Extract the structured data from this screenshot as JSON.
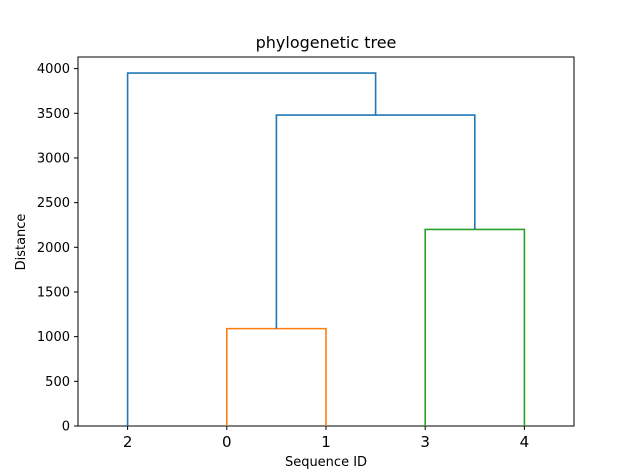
{
  "chart_data": {
    "type": "dendrogram",
    "title": "phylogenetic tree",
    "xlabel": "Sequence ID",
    "ylabel": "Distance",
    "leaf_order": [
      "2",
      "0",
      "1",
      "3",
      "4"
    ],
    "ylim": [
      0,
      4130
    ],
    "yticks": [
      0,
      500,
      1000,
      1500,
      2000,
      2500,
      3000,
      3500,
      4000
    ],
    "grid": false,
    "links": [
      {
        "name": "link-0-1",
        "left": "0",
        "right": "1",
        "height": 1090,
        "color": "#ff7f0e"
      },
      {
        "name": "link-3-4",
        "left": "3",
        "right": "4",
        "height": 2200,
        "color": "#2ca02c"
      },
      {
        "name": "link-01-34",
        "left": "0,1",
        "right": "3,4",
        "height": 3480,
        "color": "#1f77b4"
      },
      {
        "name": "link-2-root",
        "left": "2",
        "right": "0,1,3,4",
        "height": 3950,
        "color": "#1f77b4"
      }
    ]
  }
}
